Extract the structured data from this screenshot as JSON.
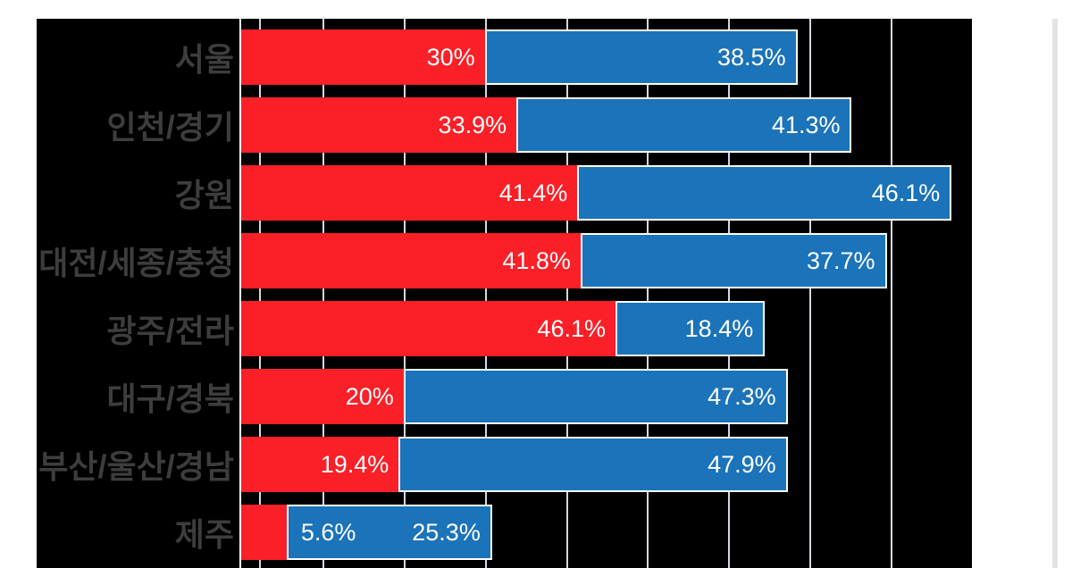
{
  "chart_data": {
    "type": "bar",
    "orientation": "horizontal-stacked",
    "title": "",
    "xlabel": "",
    "ylabel": "",
    "categories": [
      "서울",
      "인천/경기",
      "강원",
      "대전/세종/충청",
      "광주/전라",
      "대구/경북",
      "부산/울산/경남",
      "제주"
    ],
    "series": [
      {
        "name": "red-series",
        "color": "#fb1f27",
        "values": [
          30,
          33.9,
          41.4,
          41.8,
          46.1,
          20,
          19.4,
          5.6
        ]
      },
      {
        "name": "blue-series",
        "color": "#1b73b9",
        "values": [
          38.5,
          41.3,
          46.1,
          37.7,
          18.4,
          47.3,
          47.9,
          25.3
        ]
      }
    ],
    "value_labels": [
      [
        "30%",
        "38.5%"
      ],
      [
        "33.9%",
        "41.3%"
      ],
      [
        "41.4%",
        "46.1%"
      ],
      [
        "41.8%",
        "37.7%"
      ],
      [
        "46.1%",
        "18.4%"
      ],
      [
        "20%",
        "47.3%"
      ],
      [
        "19.4%",
        "47.9%"
      ],
      [
        "5.6%",
        "25.3%"
      ]
    ],
    "axis": {
      "min": 0,
      "max": 90,
      "gridline_interval": 10,
      "extra_gridline_pct": 2.2
    },
    "grid": true,
    "legend": false,
    "colors": {
      "plot_background": "#000000",
      "gridline": "#d2d9e4",
      "axis_line": "#ffffff",
      "category_label": "#3d3d3d",
      "value_label": "#ffffff",
      "page_background": "#ffffff",
      "scrollbar": "#e3e3e3"
    }
  }
}
